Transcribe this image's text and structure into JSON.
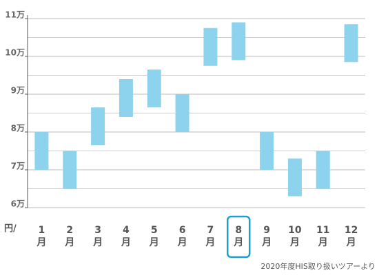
{
  "chart_data": {
    "type": "range_bar",
    "categories": [
      "1月",
      "2月",
      "3月",
      "4月",
      "5月",
      "6月",
      "7月",
      "8月",
      "9月",
      "10月",
      "11月",
      "12月"
    ],
    "series": [
      {
        "color": "#8dd3ee",
        "low": [
          7.0,
          6.5,
          7.65,
          8.4,
          8.65,
          8.0,
          9.75,
          9.9,
          7.0,
          6.3,
          6.5,
          9.85
        ],
        "high": [
          8.0,
          7.5,
          8.65,
          9.4,
          9.65,
          9.0,
          10.75,
          10.9,
          8.0,
          7.3,
          7.5,
          10.85
        ]
      }
    ],
    "ylim": [
      6,
      11
    ],
    "yticks": [
      {
        "value": 6,
        "label": "6万"
      },
      {
        "value": 7,
        "label": "7万"
      },
      {
        "value": 8,
        "label": "8万"
      },
      {
        "value": 9,
        "label": "9万"
      },
      {
        "value": 10,
        "label": "10万"
      },
      {
        "value": 11,
        "label": "11万"
      }
    ],
    "minor_yticks": [
      6.5,
      7.5,
      8.5,
      9.5,
      10.5
    ],
    "grid": true,
    "unit_label": "円/",
    "highlighted": "8月",
    "highlight_color": "#1a9ed4",
    "source": "2020年度HIS取り扱いツアーより"
  }
}
